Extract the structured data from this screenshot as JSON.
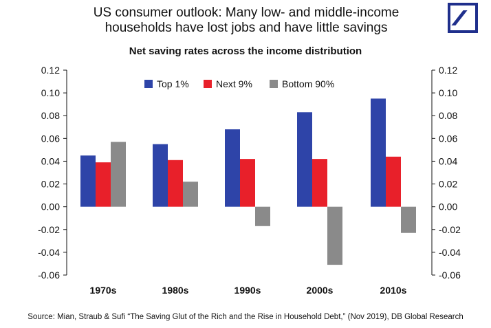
{
  "header": {
    "title_line1": "US consumer outlook: Many low- and middle-income",
    "title_line2": "households have lost jobs and have little savings",
    "logo_icon": "deutsche-bank-logo-icon"
  },
  "footer": {
    "source": "Source: Mian, Straub & Sufi “The Saving Glut of the Rich and the Rise in Household Debt,” (Nov 2019), DB Global Research"
  },
  "chart_data": {
    "type": "bar",
    "title": "Net saving rates across the income distribution",
    "categories": [
      "1970s",
      "1980s",
      "1990s",
      "2000s",
      "2010s"
    ],
    "series": [
      {
        "name": "Top 1%",
        "color": "#2e44a8",
        "values": [
          0.045,
          0.055,
          0.068,
          0.083,
          0.095
        ]
      },
      {
        "name": "Next 9%",
        "color": "#e8202a",
        "values": [
          0.039,
          0.041,
          0.042,
          0.042,
          0.044
        ]
      },
      {
        "name": "Bottom 90%",
        "color": "#8a8a8a",
        "values": [
          0.057,
          0.022,
          -0.017,
          -0.051,
          -0.023
        ]
      }
    ],
    "ylim": [
      -0.06,
      0.12
    ],
    "yticks": [
      "0.12",
      "0.10",
      "0.08",
      "0.06",
      "0.04",
      "0.02",
      "0.00",
      "-0.02",
      "-0.04",
      "-0.06"
    ],
    "ytick_values": [
      0.12,
      0.1,
      0.08,
      0.06,
      0.04,
      0.02,
      0.0,
      -0.02,
      -0.04,
      -0.06
    ],
    "axes": "left-and-right",
    "grid": false,
    "legend_position": "top-center"
  }
}
